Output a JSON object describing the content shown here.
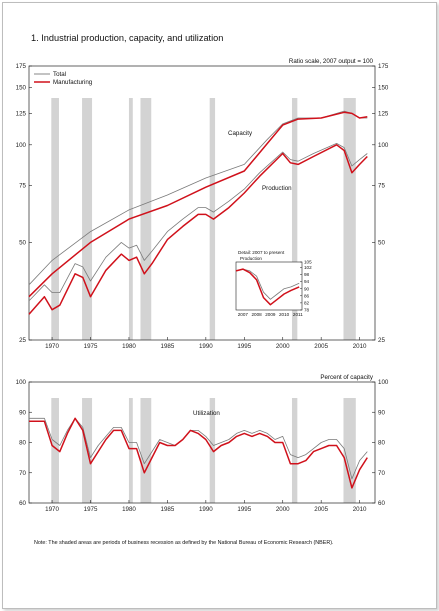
{
  "title": "1.  Industrial production, capacity, and utilization",
  "note": "Note: The shaded areas are periods of business recession as defined by the National Bureau of Economic Research (NBER).",
  "colors": {
    "total": "#7a7a7a",
    "manufacturing": "#d0111b",
    "recession": "#d3d3d3",
    "axis": "#222222"
  },
  "chart_data": [
    {
      "type": "line",
      "scale": "log",
      "note": "Ratio scale, 2007 output = 100",
      "ylim": [
        25,
        175
      ],
      "xlim": [
        1967,
        2012
      ],
      "yticks": [
        25,
        50,
        75,
        100,
        125,
        150,
        175
      ],
      "xticks": [
        1970,
        1975,
        1980,
        1985,
        1990,
        1995,
        2000,
        2005,
        2010
      ],
      "legend": [
        "Total",
        "Manufacturing"
      ],
      "annotations": [
        "Capacity",
        "Production"
      ],
      "recessions": [
        [
          1969.9,
          1970.9
        ],
        [
          1973.9,
          1975.2
        ],
        [
          1980.0,
          1980.5
        ],
        [
          1981.5,
          1982.9
        ],
        [
          1990.5,
          1991.2
        ],
        [
          2001.2,
          2001.9
        ],
        [
          2007.9,
          2009.5
        ]
      ],
      "series": [
        {
          "name": "Total",
          "role": "capacity",
          "x": [
            1967,
            1970,
            1975,
            1980,
            1985,
            1990,
            1995,
            1998,
            2000,
            2002,
            2005,
            2008,
            2009,
            2010,
            2011
          ],
          "y": [
            37,
            44,
            54,
            63,
            70,
            79,
            87,
            104,
            116,
            121,
            121,
            127,
            125,
            121,
            121
          ]
        },
        {
          "name": "Manufacturing",
          "role": "capacity",
          "x": [
            1967,
            1970,
            1975,
            1980,
            1985,
            1990,
            1995,
            1998,
            2000,
            2002,
            2005,
            2008,
            2009,
            2010,
            2011
          ],
          "y": [
            34,
            40,
            50,
            59,
            65,
            74,
            83,
            101,
            115,
            120,
            121,
            126,
            125,
            121,
            122
          ]
        },
        {
          "name": "Total",
          "role": "production",
          "x": [
            1967,
            1969,
            1970,
            1971,
            1973,
            1974,
            1975,
            1977,
            1979,
            1980,
            1981,
            1982,
            1983,
            1985,
            1987,
            1989,
            1990,
            1991,
            1993,
            1995,
            1997,
            2000,
            2001,
            2002,
            2004,
            2007,
            2008,
            2009,
            2010,
            2011
          ],
          "y": [
            33,
            37,
            35,
            35,
            43,
            42,
            38,
            45,
            50,
            48,
            49,
            44,
            47,
            54,
            59,
            64,
            64,
            62,
            67,
            73,
            82,
            95,
            90,
            89,
            94,
            101,
            98,
            86,
            90,
            94
          ]
        },
        {
          "name": "Manufacturing",
          "role": "production",
          "x": [
            1967,
            1969,
            1970,
            1971,
            1973,
            1974,
            1975,
            1977,
            1979,
            1980,
            1981,
            1982,
            1983,
            1985,
            1987,
            1989,
            1990,
            1991,
            1993,
            1995,
            1997,
            2000,
            2001,
            2002,
            2004,
            2007,
            2008,
            2009,
            2010,
            2011
          ],
          "y": [
            30,
            34,
            31,
            32,
            40,
            39,
            34,
            41,
            46,
            44,
            45,
            40,
            43,
            51,
            56,
            61,
            61,
            59,
            64,
            71,
            80,
            94,
            88,
            87,
            92,
            100,
            96,
            82,
            87,
            92
          ]
        }
      ]
    },
    {
      "type": "line",
      "subtitle": "Detail: 2007 to present",
      "annotations": [
        "Production"
      ],
      "ylim": [
        78,
        105
      ],
      "xlim": [
        2007,
        2011.8
      ],
      "yticks": [
        78,
        82,
        86,
        90,
        94,
        98,
        102,
        105
      ],
      "xticks": [
        2007,
        2008,
        2009,
        2010,
        2011
      ],
      "series": [
        {
          "name": "Total",
          "x": [
            2007,
            2007.5,
            2008,
            2008.5,
            2009,
            2009.5,
            2010,
            2010.5,
            2011,
            2011.6
          ],
          "y": [
            100,
            101,
            100,
            97,
            88,
            84,
            87,
            90,
            91,
            93
          ]
        },
        {
          "name": "Manufacturing",
          "x": [
            2007,
            2007.5,
            2008,
            2008.5,
            2009,
            2009.5,
            2010,
            2010.5,
            2011,
            2011.6
          ],
          "y": [
            100,
            101,
            99,
            95,
            85,
            81,
            84,
            87,
            89,
            91
          ]
        }
      ]
    },
    {
      "type": "line",
      "note": "Percent of capacity",
      "ylim": [
        60,
        100
      ],
      "xlim": [
        1967,
        2012
      ],
      "yticks": [
        60,
        70,
        80,
        90,
        100
      ],
      "xticks": [
        1970,
        1975,
        1980,
        1985,
        1990,
        1995,
        2000,
        2005,
        2010
      ],
      "annotations": [
        "Utilization"
      ],
      "recessions": [
        [
          1969.9,
          1970.9
        ],
        [
          1973.9,
          1975.2
        ],
        [
          1980.0,
          1980.5
        ],
        [
          1981.5,
          1982.9
        ],
        [
          1990.5,
          1991.2
        ],
        [
          2001.2,
          2001.9
        ],
        [
          2007.9,
          2009.5
        ]
      ],
      "series": [
        {
          "name": "Total",
          "x": [
            1967,
            1968,
            1969,
            1970,
            1971,
            1972,
            1973,
            1974,
            1975,
            1976,
            1977,
            1978,
            1979,
            1980,
            1981,
            1982,
            1983,
            1984,
            1985,
            1986,
            1987,
            1988,
            1989,
            1990,
            1991,
            1992,
            1993,
            1994,
            1995,
            1996,
            1997,
            1998,
            1999,
            2000,
            2001,
            2002,
            2003,
            2004,
            2005,
            2006,
            2007,
            2008,
            2009,
            2010,
            2011
          ],
          "y": [
            88,
            88,
            88,
            81,
            79,
            84,
            88,
            85,
            75,
            79,
            82,
            85,
            85,
            80,
            80,
            73,
            77,
            81,
            80,
            79,
            81,
            84,
            84,
            82,
            79,
            80,
            81,
            83,
            84,
            83,
            84,
            83,
            81,
            82,
            76,
            75,
            76,
            78,
            80,
            81,
            81,
            78,
            68,
            74,
            77
          ]
        },
        {
          "name": "Manufacturing",
          "x": [
            1967,
            1968,
            1969,
            1970,
            1971,
            1972,
            1973,
            1974,
            1975,
            1976,
            1977,
            1978,
            1979,
            1980,
            1981,
            1982,
            1983,
            1984,
            1985,
            1986,
            1987,
            1988,
            1989,
            1990,
            1991,
            1992,
            1993,
            1994,
            1995,
            1996,
            1997,
            1998,
            1999,
            2000,
            2001,
            2002,
            2003,
            2004,
            2005,
            2006,
            2007,
            2008,
            2009,
            2010,
            2011
          ],
          "y": [
            87,
            87,
            87,
            79,
            77,
            83,
            88,
            84,
            73,
            77,
            81,
            84,
            84,
            78,
            78,
            70,
            75,
            80,
            79,
            79,
            81,
            84,
            83,
            81,
            77,
            79,
            80,
            82,
            83,
            82,
            83,
            82,
            80,
            80,
            73,
            73,
            74,
            77,
            78,
            79,
            79,
            75,
            65,
            71,
            75
          ]
        }
      ]
    }
  ]
}
